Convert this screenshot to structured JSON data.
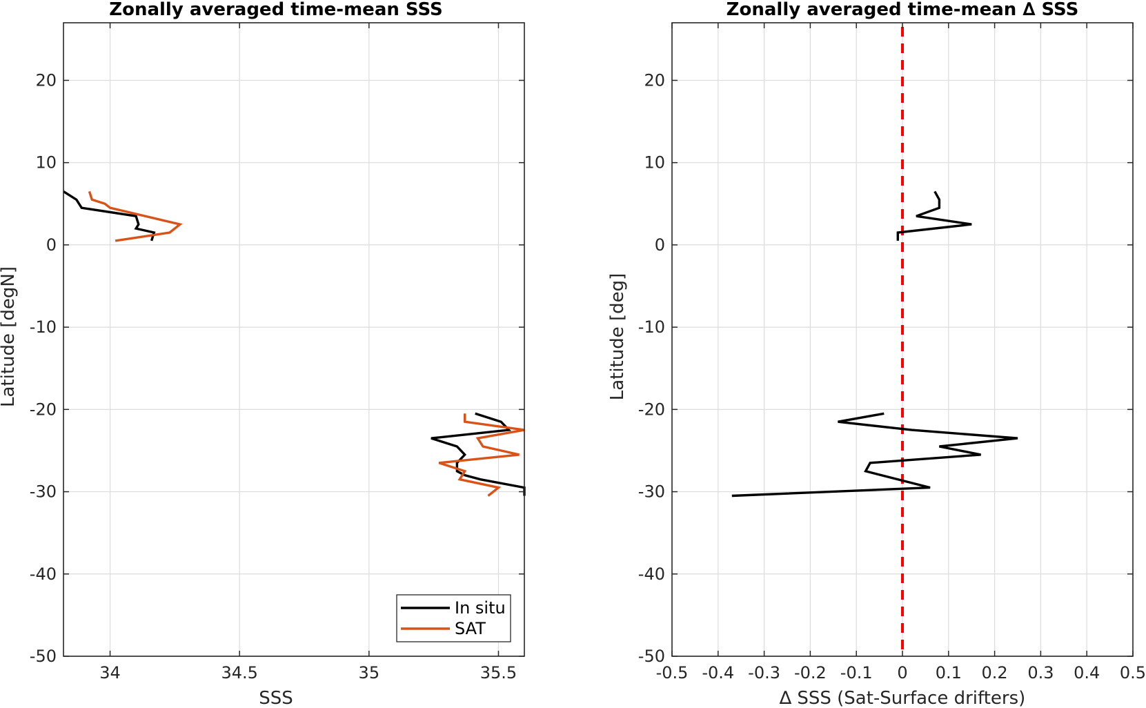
{
  "chart_data": [
    {
      "type": "line",
      "title": "Zonally averaged time-mean SSS",
      "xlabel": "SSS",
      "ylabel": "Latitude [degN]",
      "xlim": [
        33.82,
        35.6
      ],
      "ylim": [
        -50,
        27
      ],
      "xticks": [
        34,
        34.5,
        35,
        35.5
      ],
      "xtick_labels": [
        "34",
        "34.5",
        "35",
        "35.5"
      ],
      "yticks": [
        -50,
        -40,
        -30,
        -20,
        -10,
        0,
        10,
        20
      ],
      "ytick_labels": [
        "-50",
        "-40",
        "-30",
        "-20",
        "-10",
        "0",
        "10",
        "20"
      ],
      "grid": true,
      "legend": "bottom-right",
      "series": [
        {
          "name": "In situ",
          "color": "#000000",
          "segments": [
            [
              {
                "x": 33.82,
                "y": 6.5
              },
              {
                "x": 33.87,
                "y": 5.5
              },
              {
                "x": 33.89,
                "y": 4.5
              },
              {
                "x": 34.1,
                "y": 3.5
              },
              {
                "x": 34.11,
                "y": 2.5
              },
              {
                "x": 34.1,
                "y": 2.0
              },
              {
                "x": 34.17,
                "y": 1.5
              },
              {
                "x": 34.16,
                "y": 0.5
              }
            ],
            [
              {
                "x": 35.41,
                "y": -20.5
              },
              {
                "x": 35.51,
                "y": -21.5
              },
              {
                "x": 35.54,
                "y": -22.5
              },
              {
                "x": 35.24,
                "y": -23.5
              },
              {
                "x": 35.34,
                "y": -24.5
              },
              {
                "x": 35.37,
                "y": -25.5
              },
              {
                "x": 35.34,
                "y": -26.5
              },
              {
                "x": 35.34,
                "y": -27.5
              },
              {
                "x": 35.37,
                "y": -28.0
              },
              {
                "x": 35.43,
                "y": -28.5
              },
              {
                "x": 35.6,
                "y": -29.5
              },
              {
                "x": 35.6,
                "y": -30.5
              }
            ]
          ]
        },
        {
          "name": "SAT",
          "color": "#D95319",
          "segments": [
            [
              {
                "x": 33.92,
                "y": 6.5
              },
              {
                "x": 33.93,
                "y": 5.5
              },
              {
                "x": 33.98,
                "y": 5.0
              },
              {
                "x": 34.0,
                "y": 4.5
              },
              {
                "x": 34.27,
                "y": 2.5
              },
              {
                "x": 34.23,
                "y": 1.5
              },
              {
                "x": 34.02,
                "y": 0.5
              }
            ],
            [
              {
                "x": 35.37,
                "y": -20.5
              },
              {
                "x": 35.37,
                "y": -21.5
              },
              {
                "x": 35.6,
                "y": -22.5
              },
              {
                "x": 35.42,
                "y": -23.5
              },
              {
                "x": 35.44,
                "y": -24.5
              },
              {
                "x": 35.58,
                "y": -25.5
              },
              {
                "x": 35.27,
                "y": -26.5
              },
              {
                "x": 35.37,
                "y": -27.5
              },
              {
                "x": 35.35,
                "y": -28.5
              },
              {
                "x": 35.5,
                "y": -29.5
              },
              {
                "x": 35.46,
                "y": -30.5
              }
            ]
          ]
        }
      ]
    },
    {
      "type": "line",
      "title": "Zonally averaged time-mean ∆ SSS",
      "xlabel": "∆ SSS (Sat-Surface drifters)",
      "ylabel": "Latitude [deg]",
      "xlim": [
        -0.5,
        0.5
      ],
      "ylim": [
        -50,
        27
      ],
      "xticks": [
        -0.5,
        -0.4,
        -0.3,
        -0.2,
        -0.1,
        0,
        0.1,
        0.2,
        0.3,
        0.4,
        0.5
      ],
      "xtick_labels": [
        "-0.5",
        "-0.4",
        "-0.3",
        "-0.2",
        "-0.1",
        "0",
        "0.1",
        "0.2",
        "0.3",
        "0.4",
        "0.5"
      ],
      "yticks": [
        -50,
        -40,
        -30,
        -20,
        -10,
        0,
        10,
        20
      ],
      "ytick_labels": [
        "-50",
        "-40",
        "-30",
        "-20",
        "-10",
        "0",
        "10",
        "20"
      ],
      "grid": true,
      "reference_line": {
        "x": 0,
        "color": "#FF0000",
        "style": "dashed"
      },
      "series": [
        {
          "color": "#000000",
          "segments": [
            [
              {
                "x": 0.07,
                "y": 6.5
              },
              {
                "x": 0.08,
                "y": 5.5
              },
              {
                "x": 0.08,
                "y": 4.5
              },
              {
                "x": 0.03,
                "y": 3.5
              },
              {
                "x": 0.15,
                "y": 2.5
              },
              {
                "x": -0.01,
                "y": 1.5
              },
              {
                "x": -0.01,
                "y": 0.5
              }
            ],
            [
              {
                "x": -0.04,
                "y": -20.5
              },
              {
                "x": -0.14,
                "y": -21.5
              },
              {
                "x": 0.02,
                "y": -22.5
              },
              {
                "x": 0.25,
                "y": -23.5
              },
              {
                "x": 0.08,
                "y": -24.5
              },
              {
                "x": 0.17,
                "y": -25.5
              },
              {
                "x": -0.07,
                "y": -26.5
              },
              {
                "x": -0.08,
                "y": -27.5
              },
              {
                "x": 0.06,
                "y": -29.5
              },
              {
                "x": -0.37,
                "y": -30.5
              }
            ]
          ]
        }
      ]
    }
  ],
  "legend": {
    "entries": [
      {
        "label": "In situ",
        "color": "#000000"
      },
      {
        "label": "SAT",
        "color": "#D95319"
      }
    ]
  }
}
